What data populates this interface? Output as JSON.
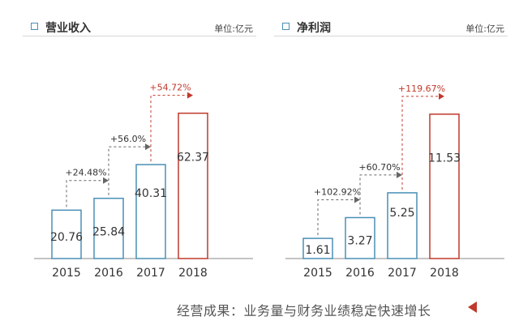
{
  "footer": {
    "text": "经营成果：业务量与财务业绩稳定快速增长"
  },
  "chart_data": [
    {
      "type": "bar",
      "title": "营业收入",
      "unit": "单位:亿元",
      "categories": [
        "2015",
        "2016",
        "2017",
        "2018"
      ],
      "values": [
        20.76,
        25.84,
        40.31,
        62.37
      ],
      "value_labels": [
        "20.76",
        "25.84",
        "40.31",
        "62.37"
      ],
      "growth_labels": [
        "+24.48%",
        "+56.0%",
        "+54.72%"
      ],
      "ylim": [
        0,
        72
      ],
      "grid": false,
      "colors": {
        "bar": "#4a8fb5",
        "highlight": "#c0392b",
        "arrow": "#666666"
      }
    },
    {
      "type": "bar",
      "title": "净利润",
      "unit": "单位:亿元",
      "categories": [
        "2015",
        "2016",
        "2017",
        "2018"
      ],
      "values": [
        1.61,
        3.27,
        5.25,
        11.53
      ],
      "value_labels": [
        "1.61",
        "3.27",
        "5.25",
        "11.53"
      ],
      "growth_labels": [
        "+102.92%",
        "+60.70%",
        "+119.67%"
      ],
      "ylim": [
        0,
        13.4
      ],
      "grid": false,
      "colors": {
        "bar": "#4a8fb5",
        "highlight": "#c0392b",
        "arrow": "#666666"
      }
    }
  ]
}
